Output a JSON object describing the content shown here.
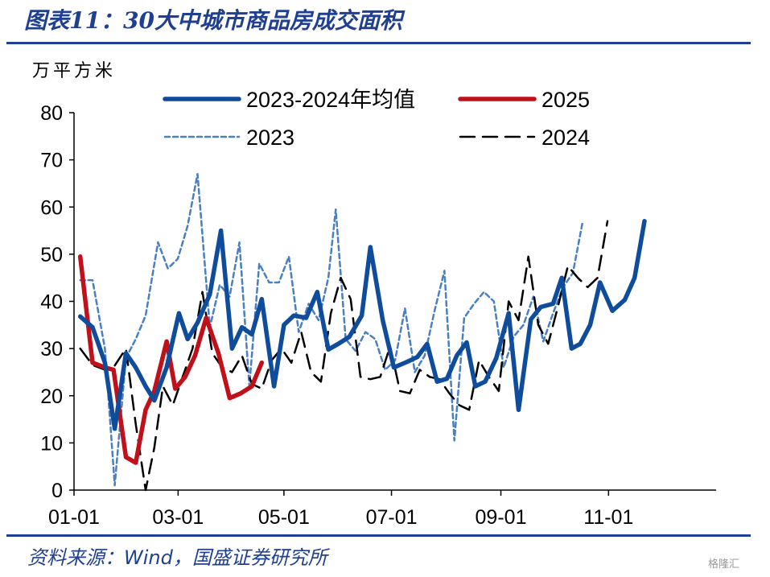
{
  "header": {
    "title": "图表11：30大中城市商品房成交面积"
  },
  "footer": {
    "source": "资料来源：Wind，国盛证券研究所",
    "watermark": "格隆汇"
  },
  "colors": {
    "title": "#1F3F91",
    "avg": "#0F4C9C",
    "y2025": "#C0101A",
    "y2023": "#4A7FC1",
    "y2024": "#000000"
  },
  "chart_data": {
    "type": "line",
    "ylabel": "万平方米",
    "ylim": [
      0,
      80
    ],
    "yticks": [
      0,
      10,
      20,
      30,
      40,
      50,
      60,
      70,
      80
    ],
    "xticks": [
      "01-01",
      "03-01",
      "05-01",
      "07-01",
      "09-01",
      "11-01"
    ],
    "xtick_weeks": [
      0,
      8.43,
      17,
      25.71,
      34.57,
      43.29
    ],
    "xlim_weeks": [
      0,
      52
    ],
    "x_unit": "week of year (0 = 01-01)",
    "series": [
      {
        "name": "2023-2024年均值",
        "style": "solid-thick",
        "color": "#0F4C9C",
        "points": [
          [
            0.5,
            36.8
          ],
          [
            1.5,
            34.5
          ],
          [
            2.5,
            27
          ],
          [
            3.3,
            13
          ],
          [
            4.2,
            29
          ],
          [
            5,
            26
          ],
          [
            5.8,
            22
          ],
          [
            6.5,
            19
          ],
          [
            7.5,
            26
          ],
          [
            8.5,
            37.5
          ],
          [
            9.2,
            32
          ],
          [
            10,
            35.5
          ],
          [
            11,
            41.5
          ],
          [
            11.9,
            55
          ],
          [
            12.8,
            30
          ],
          [
            13.6,
            34.5
          ],
          [
            14.4,
            33
          ],
          [
            15.2,
            40.5
          ],
          [
            16.2,
            22
          ],
          [
            17,
            35
          ],
          [
            17.8,
            37
          ],
          [
            18.8,
            36.5
          ],
          [
            19.7,
            42
          ],
          [
            20.6,
            29.8
          ],
          [
            21.4,
            31
          ],
          [
            22.3,
            32.5
          ],
          [
            23.3,
            37
          ],
          [
            24,
            51.5
          ],
          [
            25,
            36
          ],
          [
            25.9,
            26
          ],
          [
            27,
            27.2
          ],
          [
            27.8,
            28.2
          ],
          [
            28.6,
            31
          ],
          [
            29.4,
            23
          ],
          [
            30.2,
            23.6
          ],
          [
            31,
            28.5
          ],
          [
            31.8,
            31.3
          ],
          [
            32.5,
            22
          ],
          [
            33.3,
            23
          ],
          [
            34.2,
            28
          ],
          [
            35.2,
            37.5
          ],
          [
            36,
            17
          ],
          [
            37,
            36.2
          ],
          [
            37.8,
            38.8
          ],
          [
            38.8,
            39.5
          ],
          [
            39.5,
            45
          ],
          [
            40.3,
            30
          ],
          [
            41,
            31
          ],
          [
            41.8,
            35
          ],
          [
            42.6,
            44
          ],
          [
            43.6,
            38
          ],
          [
            44.6,
            40.3
          ],
          [
            45.4,
            45
          ],
          [
            46.2,
            57
          ]
        ]
      },
      {
        "name": "2025",
        "style": "solid-thick",
        "color": "#C0101A",
        "points": [
          [
            0.5,
            49.5
          ],
          [
            1.5,
            27
          ],
          [
            2.5,
            26
          ],
          [
            3.2,
            25.5
          ],
          [
            4.2,
            7
          ],
          [
            5,
            5.8
          ],
          [
            5.8,
            17
          ],
          [
            6.5,
            21
          ],
          [
            7.5,
            31.5
          ],
          [
            8.2,
            21.5
          ],
          [
            9,
            24
          ],
          [
            9.8,
            28.5
          ],
          [
            10.7,
            36.5
          ],
          [
            11.7,
            29
          ],
          [
            12.6,
            19.5
          ],
          [
            13.5,
            20.5
          ],
          [
            14.4,
            22
          ],
          [
            15.2,
            27
          ]
        ]
      },
      {
        "name": "2023",
        "style": "dashed-thin",
        "color": "#4A7FC1",
        "points": [
          [
            0.5,
            44.5
          ],
          [
            1.5,
            44.5
          ],
          [
            2.5,
            30
          ],
          [
            3.3,
            1
          ],
          [
            4.2,
            28
          ],
          [
            5,
            32
          ],
          [
            5.8,
            37
          ],
          [
            6.8,
            52.5
          ],
          [
            7.6,
            47
          ],
          [
            8.4,
            49
          ],
          [
            9.2,
            56
          ],
          [
            10,
            67
          ],
          [
            11,
            34.5
          ],
          [
            11.8,
            43.5
          ],
          [
            12.6,
            41
          ],
          [
            13.4,
            52.5
          ],
          [
            14.2,
            22
          ],
          [
            15,
            48
          ],
          [
            15.8,
            44
          ],
          [
            16.6,
            44
          ],
          [
            17.4,
            49.5
          ],
          [
            18.2,
            33.5
          ],
          [
            19,
            39.5
          ],
          [
            19.8,
            36
          ],
          [
            20.6,
            45
          ],
          [
            21.2,
            59.5
          ],
          [
            22,
            32
          ],
          [
            22.8,
            29.5
          ],
          [
            23.6,
            33.5
          ],
          [
            24.4,
            32
          ],
          [
            25.2,
            25.5
          ],
          [
            26,
            27.5
          ],
          [
            26.8,
            38.5
          ],
          [
            27.6,
            25
          ],
          [
            28.4,
            28.5
          ],
          [
            29.2,
            38
          ],
          [
            30,
            46.5
          ],
          [
            30.8,
            10.5
          ],
          [
            31.6,
            36.5
          ],
          [
            32.4,
            39.5
          ],
          [
            33.2,
            42
          ],
          [
            34,
            40
          ],
          [
            34.8,
            26
          ],
          [
            35.6,
            32.5
          ],
          [
            36.4,
            35
          ],
          [
            37.2,
            41
          ],
          [
            38,
            31.5
          ],
          [
            38.8,
            37.5
          ],
          [
            39.6,
            43
          ],
          [
            40.4,
            46
          ],
          [
            41.2,
            57
          ]
        ]
      },
      {
        "name": "2024",
        "style": "dashed-black",
        "color": "#000000",
        "points": [
          [
            0.5,
            30
          ],
          [
            1.5,
            26.5
          ],
          [
            2.5,
            25.5
          ],
          [
            3.2,
            26
          ],
          [
            4.2,
            30
          ],
          [
            5,
            14
          ],
          [
            5.8,
            0
          ],
          [
            6.5,
            9
          ],
          [
            7.2,
            22
          ],
          [
            8,
            18
          ],
          [
            8.8,
            24
          ],
          [
            9.6,
            30
          ],
          [
            10.4,
            42
          ],
          [
            11.2,
            29
          ],
          [
            12,
            26
          ],
          [
            12.8,
            25
          ],
          [
            13.6,
            28.5
          ],
          [
            14.4,
            22.5
          ],
          [
            15.2,
            21.5
          ],
          [
            16,
            27.5
          ],
          [
            16.8,
            30
          ],
          [
            17.6,
            27
          ],
          [
            18.4,
            33.5
          ],
          [
            19.2,
            25
          ],
          [
            20,
            23
          ],
          [
            20.8,
            37.5
          ],
          [
            21.6,
            45
          ],
          [
            22.4,
            40.5
          ],
          [
            23.2,
            24
          ],
          [
            24,
            23.5
          ],
          [
            24.8,
            24
          ],
          [
            25.6,
            30.5
          ],
          [
            26.4,
            21
          ],
          [
            27.2,
            20.5
          ],
          [
            28,
            25.5
          ],
          [
            28.8,
            24
          ],
          [
            29.6,
            23.5
          ],
          [
            30.4,
            20.5
          ],
          [
            31.2,
            18
          ],
          [
            32,
            17
          ],
          [
            32.8,
            27.5
          ],
          [
            33.6,
            24
          ],
          [
            34.4,
            21
          ],
          [
            35.2,
            40
          ],
          [
            36,
            36
          ],
          [
            36.8,
            49.5
          ],
          [
            37.6,
            35
          ],
          [
            38.4,
            31
          ],
          [
            39.2,
            39
          ],
          [
            40,
            47.5
          ],
          [
            40.8,
            45
          ],
          [
            41.6,
            43
          ],
          [
            42.4,
            45
          ],
          [
            43.2,
            57
          ]
        ]
      }
    ],
    "legend": {
      "placement": "top",
      "columns": 2
    }
  }
}
